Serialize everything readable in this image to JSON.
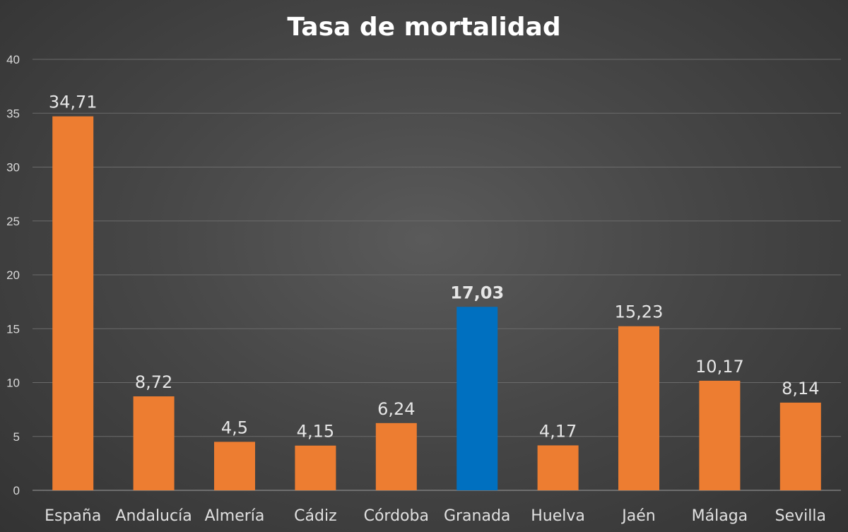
{
  "chart_data": {
    "type": "bar",
    "title": "Tasa de mortalidad",
    "xlabel": "",
    "ylabel": "",
    "ylim": [
      0,
      40
    ],
    "y_ticks": [
      "0",
      "5",
      "10",
      "15",
      "20",
      "25",
      "30",
      "35",
      "40"
    ],
    "grid": true,
    "legend": "none",
    "categories": [
      "España",
      "Andalucía",
      "Almería",
      "Cádiz",
      "Córdoba",
      "Granada",
      "Huelva",
      "Jaén",
      "Málaga",
      "Sevilla"
    ],
    "values": [
      34.71,
      8.72,
      4.5,
      4.15,
      6.24,
      17.03,
      4.17,
      15.23,
      10.17,
      8.14
    ],
    "data_labels": [
      "34,71",
      "8,72",
      "4,5",
      "4,15",
      "6,24",
      "17,03",
      "4,17",
      "15,23",
      "10,17",
      "8,14"
    ],
    "highlighted_category": "Granada",
    "colors": {
      "bar": "#ED7D31",
      "highlight_bar": "#0070C0",
      "background": "#404040"
    }
  }
}
